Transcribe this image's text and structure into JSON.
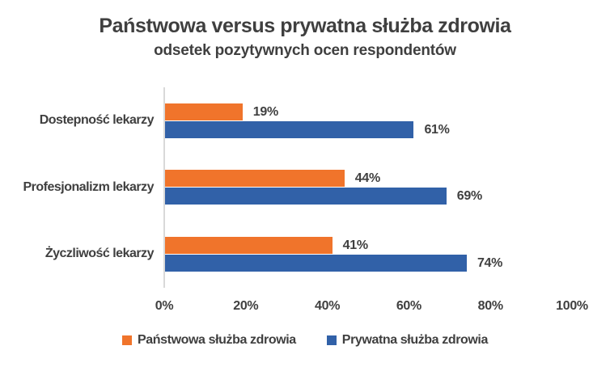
{
  "chart": {
    "title": "Państwowa versus prywatna służba zdrowia",
    "subtitle": "odsetek pozytywnych ocen respondentów",
    "colors": {
      "series1": "#F0742B",
      "series2": "#3161A8",
      "text": "#404040",
      "axis_line": "#D9D9D9",
      "background": "#FFFFFF"
    }
  },
  "chart_data": {
    "type": "bar",
    "orientation": "horizontal",
    "title": "Państwowa versus prywatna służba zdrowia",
    "subtitle": "odsetek pozytywnych ocen respondentów",
    "categories": [
      "Dostepność lekarzy",
      "Profesjonalizm lekarzy",
      "Życzliwość lekarzy"
    ],
    "series": [
      {
        "name": "Państwowa służba zdrowia",
        "color": "#F0742B",
        "values": [
          19,
          44,
          41
        ],
        "value_labels": [
          "19%",
          "44%",
          "41%"
        ]
      },
      {
        "name": "Prywatna służba zdrowia",
        "color": "#3161A8",
        "values": [
          61,
          69,
          74
        ],
        "value_labels": [
          "61%",
          "69%",
          "74%"
        ]
      }
    ],
    "x_ticks": [
      "0%",
      "20%",
      "40%",
      "60%",
      "80%",
      "100%"
    ],
    "xlim": [
      0,
      100
    ],
    "grid": false,
    "legend_position": "bottom"
  }
}
